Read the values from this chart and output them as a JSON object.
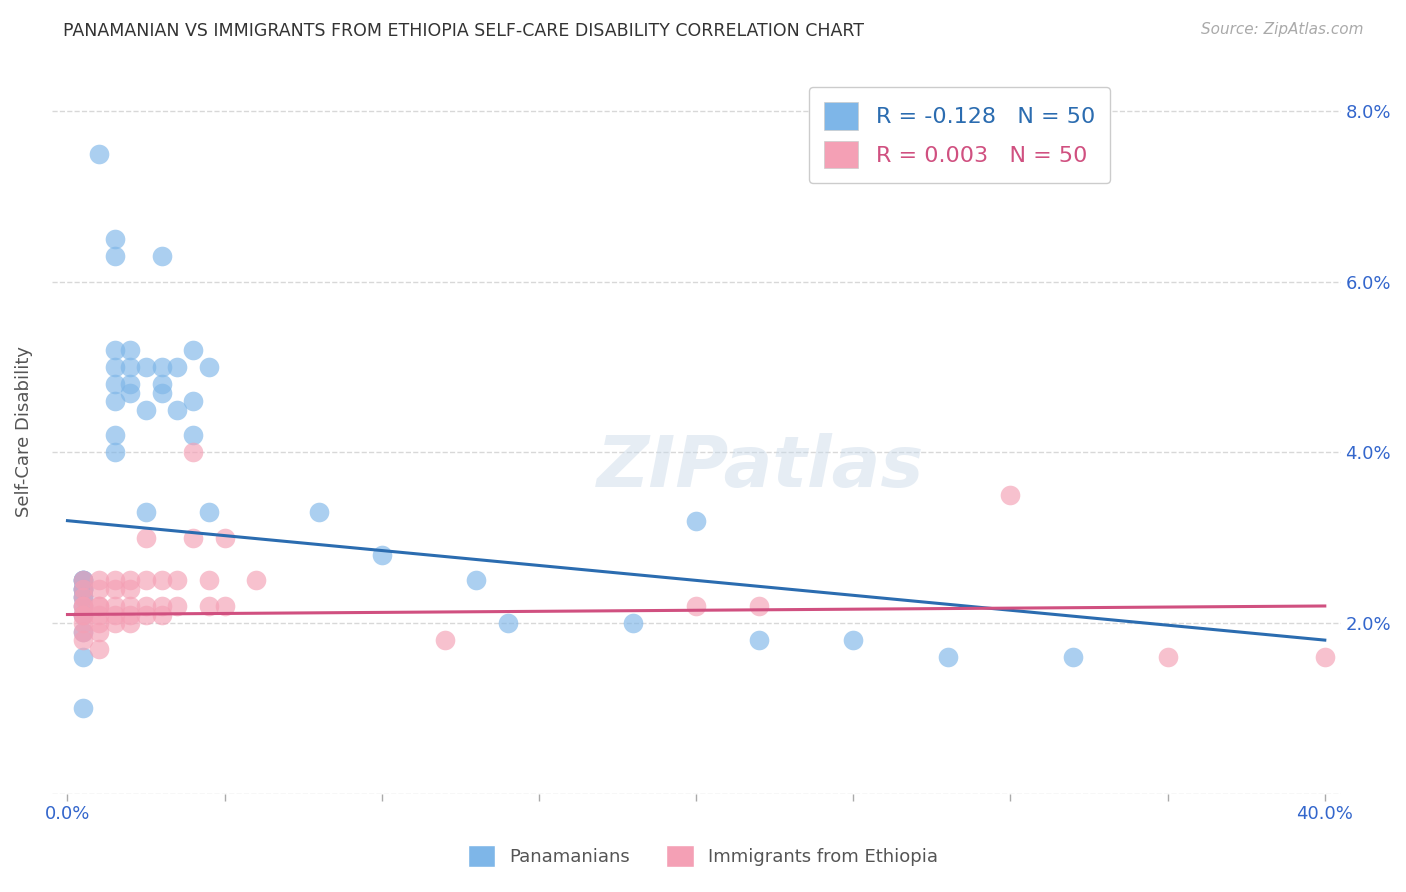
{
  "title": "PANAMANIAN VS IMMIGRANTS FROM ETHIOPIA SELF-CARE DISABILITY CORRELATION CHART",
  "source": "Source: ZipAtlas.com",
  "xlabel_tick_vals": [
    0.0,
    0.05,
    0.1,
    0.15,
    0.2,
    0.25,
    0.3,
    0.35,
    0.4
  ],
  "xlabel_labels_shown": {
    "0.0": "0.0%",
    "0.40": "40.0%"
  },
  "ylabel_tick_vals": [
    0.0,
    0.02,
    0.04,
    0.06,
    0.08
  ],
  "ylabel_labels_right": [
    "",
    "2.0%",
    "4.0%",
    "6.0%",
    "8.0%"
  ],
  "ylabel": "Self-Care Disability",
  "legend_label_1": "Panamanians",
  "legend_label_2": "Immigrants from Ethiopia",
  "R1": -0.128,
  "N1": 50,
  "R2": 0.003,
  "N2": 50,
  "color1": "#7eb6e8",
  "color2": "#f4a0b5",
  "line_color1": "#2b6cb0",
  "line_color2": "#d05080",
  "scatter1_x": [
    0.01,
    0.015,
    0.015,
    0.015,
    0.015,
    0.015,
    0.015,
    0.015,
    0.015,
    0.02,
    0.02,
    0.02,
    0.02,
    0.025,
    0.025,
    0.025,
    0.03,
    0.03,
    0.03,
    0.03,
    0.035,
    0.035,
    0.04,
    0.04,
    0.04,
    0.045,
    0.045,
    0.005,
    0.005,
    0.005,
    0.005,
    0.005,
    0.005,
    0.005,
    0.005,
    0.08,
    0.1,
    0.13,
    0.14,
    0.18,
    0.2,
    0.22,
    0.25,
    0.28,
    0.32,
    0.005,
    0.005,
    0.005,
    0.005,
    0.005
  ],
  "scatter1_y": [
    0.075,
    0.065,
    0.063,
    0.052,
    0.05,
    0.048,
    0.046,
    0.042,
    0.04,
    0.052,
    0.05,
    0.048,
    0.047,
    0.05,
    0.045,
    0.033,
    0.063,
    0.05,
    0.048,
    0.047,
    0.05,
    0.045,
    0.052,
    0.046,
    0.042,
    0.05,
    0.033,
    0.025,
    0.025,
    0.024,
    0.024,
    0.023,
    0.022,
    0.021,
    0.019,
    0.033,
    0.028,
    0.025,
    0.02,
    0.02,
    0.032,
    0.018,
    0.018,
    0.016,
    0.016,
    0.025,
    0.024,
    0.023,
    0.016,
    0.01
  ],
  "scatter2_x": [
    0.005,
    0.005,
    0.005,
    0.005,
    0.005,
    0.005,
    0.005,
    0.005,
    0.005,
    0.005,
    0.01,
    0.01,
    0.01,
    0.01,
    0.01,
    0.01,
    0.01,
    0.01,
    0.015,
    0.015,
    0.015,
    0.015,
    0.015,
    0.02,
    0.02,
    0.02,
    0.02,
    0.02,
    0.025,
    0.025,
    0.025,
    0.025,
    0.03,
    0.03,
    0.03,
    0.035,
    0.035,
    0.04,
    0.04,
    0.045,
    0.045,
    0.05,
    0.05,
    0.06,
    0.12,
    0.2,
    0.22,
    0.3,
    0.35,
    0.4
  ],
  "scatter2_y": [
    0.025,
    0.024,
    0.023,
    0.022,
    0.022,
    0.021,
    0.021,
    0.02,
    0.019,
    0.018,
    0.025,
    0.024,
    0.022,
    0.022,
    0.021,
    0.02,
    0.019,
    0.017,
    0.025,
    0.024,
    0.022,
    0.021,
    0.02,
    0.025,
    0.024,
    0.022,
    0.021,
    0.02,
    0.03,
    0.025,
    0.022,
    0.021,
    0.025,
    0.022,
    0.021,
    0.025,
    0.022,
    0.04,
    0.03,
    0.025,
    0.022,
    0.03,
    0.022,
    0.025,
    0.018,
    0.022,
    0.022,
    0.035,
    0.016,
    0.016
  ],
  "xlim": [
    -0.005,
    0.405
  ],
  "ylim": [
    0.0,
    0.085
  ],
  "background_color": "#ffffff",
  "grid_color": "#d8d8d8",
  "grid_style": "--"
}
